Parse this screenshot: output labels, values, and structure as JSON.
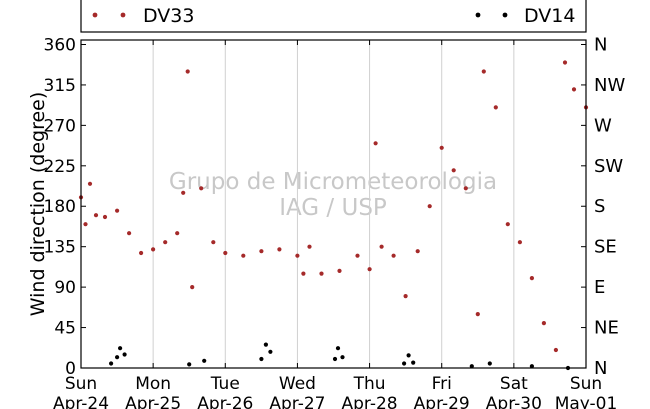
{
  "chart_data": {
    "type": "scatter",
    "title": "",
    "xlabel": "",
    "ylabel": "Wind direction (degree)",
    "watermark": [
      "Grupo de Micrometeorologia",
      "IAG / USP"
    ],
    "xlim": [
      "2011-04-24",
      "2011-05-01"
    ],
    "ylim": [
      0,
      365
    ],
    "grid": "vertical",
    "legend_placement": "top",
    "x_ticks": [
      {
        "day": "Sun",
        "date": "Apr-24"
      },
      {
        "day": "Mon",
        "date": "Apr-25"
      },
      {
        "day": "Tue",
        "date": "Apr-26"
      },
      {
        "day": "Wed",
        "date": "Apr-27"
      },
      {
        "day": "Thu",
        "date": "Apr-28"
      },
      {
        "day": "Fri",
        "date": "Apr-29"
      },
      {
        "day": "Sat",
        "date": "Apr-30"
      },
      {
        "day": "Sun",
        "date": "May-01"
      }
    ],
    "y_ticks": [
      "0",
      "45",
      "90",
      "135",
      "180",
      "225",
      "270",
      "315",
      "360"
    ],
    "y2_ticks": [
      "N",
      "NE",
      "E",
      "SE",
      "S",
      "SW",
      "W",
      "NW",
      "N"
    ],
    "series": [
      {
        "name": "DV33",
        "color": "#a52a2a",
        "points": [
          [
            "2011-04-24 00:00",
            190
          ],
          [
            "2011-04-24 01:30",
            160
          ],
          [
            "2011-04-24 03:00",
            205
          ],
          [
            "2011-04-24 05:00",
            170
          ],
          [
            "2011-04-24 08:00",
            168
          ],
          [
            "2011-04-24 12:00",
            175
          ],
          [
            "2011-04-24 16:00",
            150
          ],
          [
            "2011-04-24 20:00",
            128
          ],
          [
            "2011-04-25 00:00",
            132
          ],
          [
            "2011-04-25 04:00",
            140
          ],
          [
            "2011-04-25 08:00",
            150
          ],
          [
            "2011-04-25 10:00",
            195
          ],
          [
            "2011-04-25 11:30",
            330
          ],
          [
            "2011-04-25 13:00",
            90
          ],
          [
            "2011-04-25 16:00",
            200
          ],
          [
            "2011-04-25 20:00",
            140
          ],
          [
            "2011-04-26 00:00",
            128
          ],
          [
            "2011-04-26 06:00",
            125
          ],
          [
            "2011-04-26 12:00",
            130
          ],
          [
            "2011-04-26 18:00",
            132
          ],
          [
            "2011-04-27 00:00",
            125
          ],
          [
            "2011-04-27 02:00",
            105
          ],
          [
            "2011-04-27 04:00",
            135
          ],
          [
            "2011-04-27 08:00",
            105
          ],
          [
            "2011-04-27 14:00",
            108
          ],
          [
            "2011-04-27 20:00",
            125
          ],
          [
            "2011-04-28 00:00",
            110
          ],
          [
            "2011-04-28 02:00",
            250
          ],
          [
            "2011-04-28 04:00",
            135
          ],
          [
            "2011-04-28 08:00",
            125
          ],
          [
            "2011-04-28 12:00",
            80
          ],
          [
            "2011-04-28 16:00",
            130
          ],
          [
            "2011-04-28 20:00",
            180
          ],
          [
            "2011-04-29 00:00",
            245
          ],
          [
            "2011-04-29 04:00",
            220
          ],
          [
            "2011-04-29 08:00",
            200
          ],
          [
            "2011-04-29 12:00",
            60
          ],
          [
            "2011-04-29 14:00",
            330
          ],
          [
            "2011-04-29 18:00",
            290
          ],
          [
            "2011-04-29 22:00",
            160
          ],
          [
            "2011-04-30 02:00",
            140
          ],
          [
            "2011-04-30 06:00",
            100
          ],
          [
            "2011-04-30 10:00",
            50
          ],
          [
            "2011-04-30 14:00",
            20
          ],
          [
            "2011-04-30 17:00",
            340
          ],
          [
            "2011-04-30 20:00",
            310
          ],
          [
            "2011-05-01 00:00",
            290
          ]
        ]
      },
      {
        "name": "DV14",
        "color": "#000000",
        "points": [
          [
            "2011-04-24 10:00",
            5
          ],
          [
            "2011-04-24 12:00",
            12
          ],
          [
            "2011-04-24 13:00",
            22
          ],
          [
            "2011-04-24 14:30",
            15
          ],
          [
            "2011-04-25 12:00",
            4
          ],
          [
            "2011-04-25 17:00",
            8
          ],
          [
            "2011-04-26 12:00",
            10
          ],
          [
            "2011-04-26 13:30",
            26
          ],
          [
            "2011-04-26 15:00",
            18
          ],
          [
            "2011-04-27 12:30",
            10
          ],
          [
            "2011-04-27 13:30",
            22
          ],
          [
            "2011-04-27 15:00",
            12
          ],
          [
            "2011-04-28 11:30",
            5
          ],
          [
            "2011-04-28 13:00",
            14
          ],
          [
            "2011-04-28 14:30",
            6
          ],
          [
            "2011-04-29 10:00",
            2
          ],
          [
            "2011-04-29 16:00",
            5
          ],
          [
            "2011-04-30 06:00",
            2
          ],
          [
            "2011-04-30 18:00",
            0
          ]
        ]
      }
    ]
  }
}
